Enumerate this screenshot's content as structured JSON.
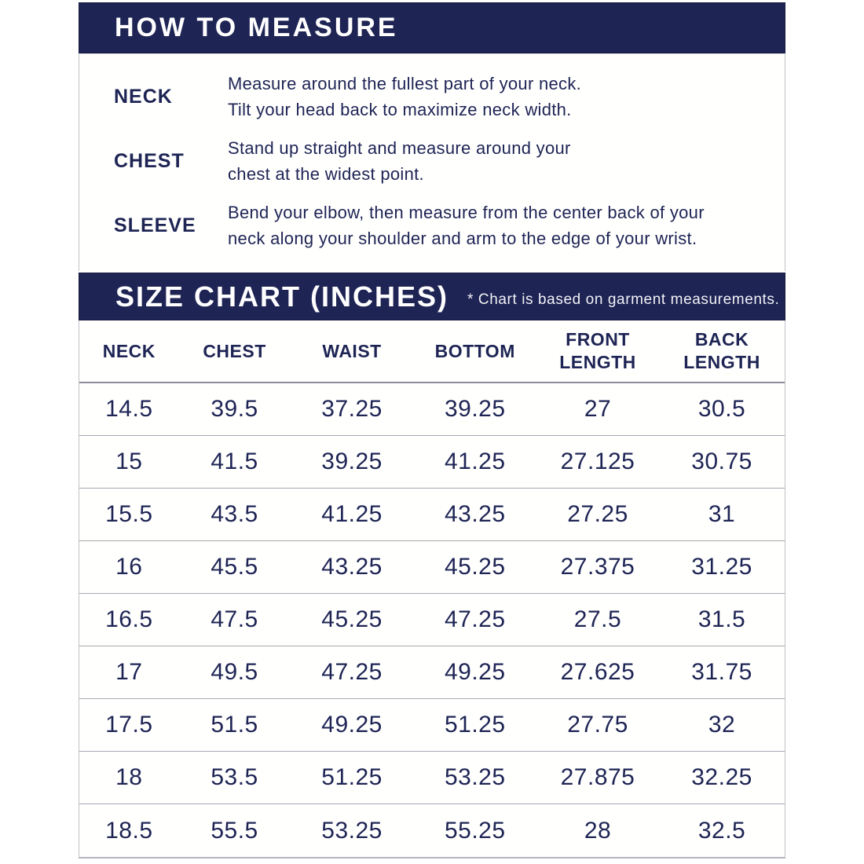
{
  "how_to_measure": {
    "title": "HOW TO MEASURE",
    "instructions": [
      {
        "label": "NECK",
        "line1": "Measure around the fullest part of your neck.",
        "line2": "Tilt your head back to maximize neck width."
      },
      {
        "label": "CHEST",
        "line1": "Stand up straight and measure around your",
        "line2": "chest at the widest point."
      },
      {
        "label": "SLEEVE",
        "line1": "Bend your elbow, then measure from the center back of your",
        "line2": "neck along your shoulder and arm to the edge of your wrist."
      }
    ]
  },
  "size_chart": {
    "title": "SIZE CHART (INCHES)",
    "note": "* Chart is based on garment measurements.",
    "table": {
      "headers": [
        "NECK",
        "CHEST",
        "WAIST",
        "BOTTOM",
        "FRONT LENGTH",
        "BACK LENGTH"
      ],
      "rows": [
        [
          "14.5",
          "39.5",
          "37.25",
          "39.25",
          "27",
          "30.5"
        ],
        [
          "15",
          "41.5",
          "39.25",
          "41.25",
          "27.125",
          "30.75"
        ],
        [
          "15.5",
          "43.5",
          "41.25",
          "43.25",
          "27.25",
          "31"
        ],
        [
          "16",
          "45.5",
          "43.25",
          "45.25",
          "27.375",
          "31.25"
        ],
        [
          "16.5",
          "47.5",
          "45.25",
          "47.25",
          "27.5",
          "31.5"
        ],
        [
          "17",
          "49.5",
          "47.25",
          "49.25",
          "27.625",
          "31.75"
        ],
        [
          "17.5",
          "51.5",
          "49.25",
          "51.25",
          "27.75",
          "32"
        ],
        [
          "18",
          "53.5",
          "51.25",
          "53.25",
          "27.875",
          "32.25"
        ],
        [
          "18.5",
          "55.5",
          "53.25",
          "55.25",
          "28",
          "32.5"
        ]
      ]
    }
  },
  "colors": {
    "navy": "#1e2454",
    "text_navy": "#1e2454",
    "row_line_gray": "#a8a8b2",
    "header_line_gray": "#8d8d99",
    "outer_border_gray": "#c2c2c8"
  }
}
